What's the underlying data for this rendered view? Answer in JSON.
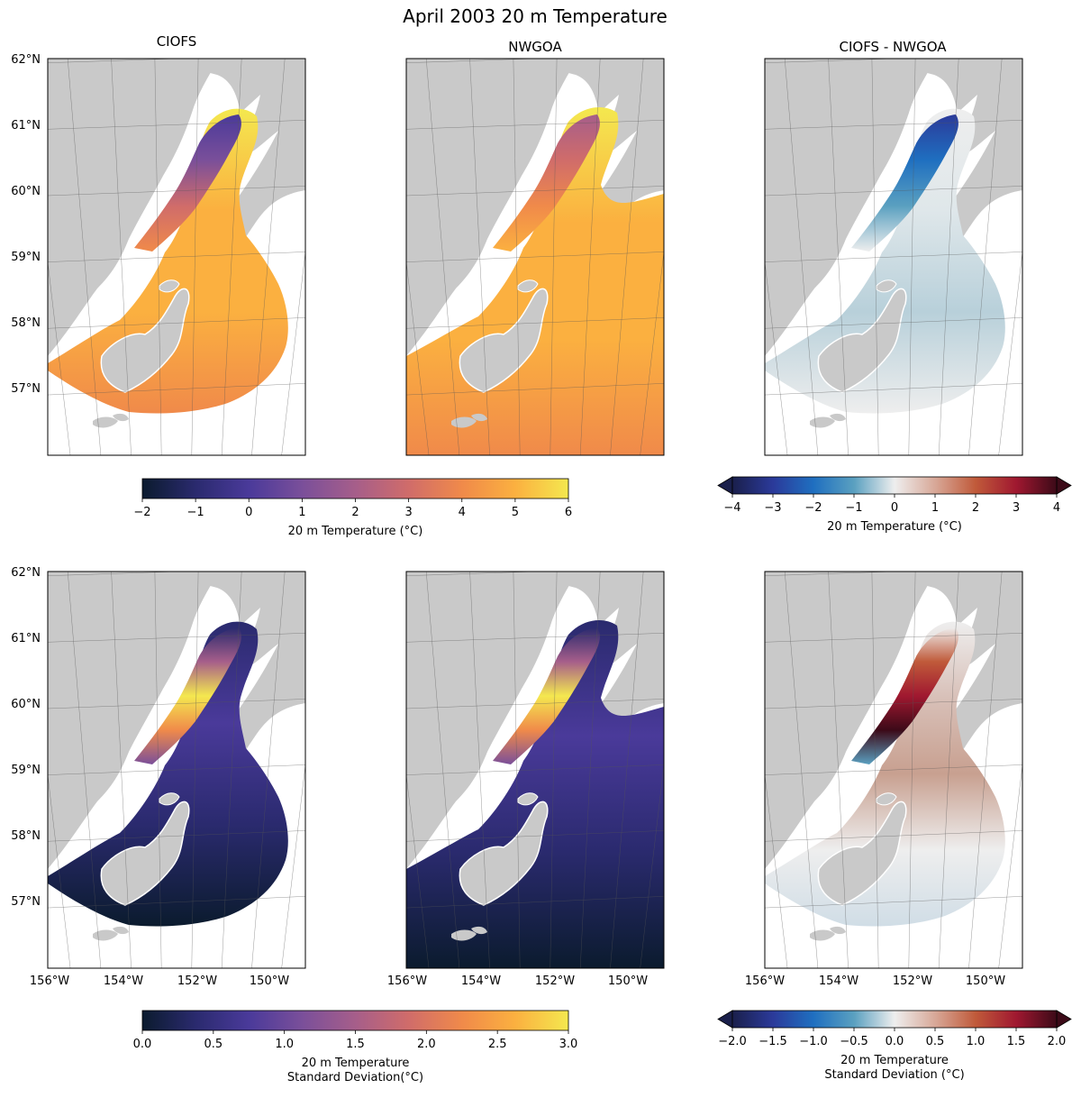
{
  "figure": {
    "suptitle": "April 2003 20 m Temperature"
  },
  "chart_data": [
    {
      "type": "heatmap",
      "title": "CIOFS",
      "panel": "top-left",
      "variable": "20 m Temperature (°C)",
      "xlim": [
        -156,
        -149
      ],
      "ylim": [
        56,
        62
      ],
      "y_ticks": [
        "62°N",
        "61°N",
        "60°N",
        "59°N",
        "58°N",
        "57°N"
      ],
      "colorbar": "temperature"
    },
    {
      "type": "heatmap",
      "title": "NWGOA",
      "panel": "top-middle",
      "variable": "20 m Temperature (°C)",
      "xlim": [
        -156,
        -149
      ],
      "ylim": [
        56,
        62
      ],
      "colorbar": "temperature"
    },
    {
      "type": "heatmap",
      "title": "CIOFS - NWGOA",
      "panel": "top-right",
      "variable": "20 m Temperature (°C)",
      "xlim": [
        -156,
        -149
      ],
      "ylim": [
        56,
        62
      ],
      "colorbar": "temperature_difference"
    },
    {
      "type": "heatmap",
      "title": "",
      "panel": "bottom-left",
      "variable": "20 m Temperature Standard Deviation(°C)",
      "xlim": [
        -156,
        -149
      ],
      "ylim": [
        56,
        62
      ],
      "x_ticks": [
        "156°W",
        "154°W",
        "152°W",
        "150°W"
      ],
      "y_ticks": [
        "62°N",
        "61°N",
        "60°N",
        "59°N",
        "58°N",
        "57°N"
      ],
      "colorbar": "std"
    },
    {
      "type": "heatmap",
      "title": "",
      "panel": "bottom-middle",
      "variable": "20 m Temperature Standard Deviation(°C)",
      "xlim": [
        -156,
        -149
      ],
      "ylim": [
        56,
        62
      ],
      "x_ticks": [
        "156°W",
        "154°W",
        "152°W",
        "150°W"
      ],
      "colorbar": "std"
    },
    {
      "type": "heatmap",
      "title": "",
      "panel": "bottom-right",
      "variable": "20 m Temperature Standard Deviation (°C)",
      "xlim": [
        -156,
        -149
      ],
      "ylim": [
        56,
        62
      ],
      "x_ticks": [
        "156°W",
        "154°W",
        "152°W",
        "150°W"
      ],
      "colorbar": "std_difference"
    }
  ],
  "colorbars": {
    "temperature": {
      "label": "20 m Temperature (°C)",
      "range": [
        -2,
        6
      ],
      "ticks": [
        "−2",
        "−1",
        "0",
        "1",
        "2",
        "3",
        "4",
        "5",
        "6"
      ],
      "extend": "neither",
      "colors": [
        "#0b1b2e",
        "#2a2a6e",
        "#4a3a9a",
        "#7a4f9a",
        "#a65e8a",
        "#d06c6a",
        "#f08a4a",
        "#fbb040",
        "#f4e84f"
      ]
    },
    "temperature_difference": {
      "label": "20 m Temperature (°C)",
      "range": [
        -4,
        4
      ],
      "ticks": [
        "−4",
        "−3",
        "−2",
        "−1",
        "0",
        "1",
        "2",
        "3",
        "4"
      ],
      "extend": "both",
      "colors": [
        "#1a1f4b",
        "#2b3a9a",
        "#1f6fc0",
        "#5aa0c0",
        "#eeeeee",
        "#d8a898",
        "#c05a3a",
        "#a01830",
        "#3c0a18"
      ]
    },
    "std": {
      "label": "20 m Temperature Standard Deviation(°C)",
      "label_lines": [
        "20 m Temperature",
        "Standard Deviation(°C)"
      ],
      "range": [
        0,
        3
      ],
      "ticks": [
        "0.0",
        "0.5",
        "1.0",
        "1.5",
        "2.0",
        "2.5",
        "3.0"
      ],
      "extend": "neither",
      "colors": [
        "#0b1b2e",
        "#2a2a6e",
        "#4a3a9a",
        "#7a4f9a",
        "#a65e8a",
        "#d06c6a",
        "#f08a4a",
        "#fbb040",
        "#f4e84f"
      ]
    },
    "std_difference": {
      "label": "20 m Temperature Standard Deviation (°C)",
      "label_lines": [
        "20 m Temperature",
        "Standard Deviation (°C)"
      ],
      "range": [
        -2,
        2
      ],
      "ticks": [
        "−2.0",
        "−1.5",
        "−1.0",
        "−0.5",
        "0.0",
        "0.5",
        "1.0",
        "1.5",
        "2.0"
      ],
      "extend": "both",
      "colors": [
        "#1a1f4b",
        "#2b3a9a",
        "#1f6fc0",
        "#5aa0c0",
        "#eeeeee",
        "#d8a898",
        "#c05a3a",
        "#a01830",
        "#3c0a18"
      ]
    }
  },
  "map_colors": {
    "land": "#c9c9c9",
    "coast": "#ffffff",
    "grid": "#555555"
  }
}
